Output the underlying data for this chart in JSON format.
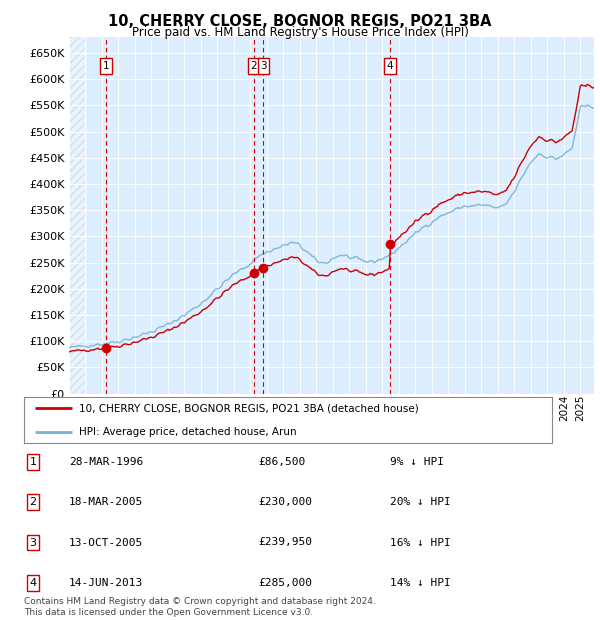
{
  "title": "10, CHERRY CLOSE, BOGNOR REGIS, PO21 3BA",
  "subtitle": "Price paid vs. HM Land Registry's House Price Index (HPI)",
  "ytick_values": [
    0,
    50000,
    100000,
    150000,
    200000,
    250000,
    300000,
    350000,
    400000,
    450000,
    500000,
    550000,
    600000,
    650000
  ],
  "ylim": [
    0,
    680000
  ],
  "xlim_start": 1994.0,
  "xlim_end": 2025.83,
  "plot_bg": "#ddeeff",
  "sale_dates": [
    1996.23,
    2005.21,
    2005.79,
    2013.45
  ],
  "sale_prices": [
    86500,
    230000,
    239950,
    285000
  ],
  "sale_labels": [
    "1",
    "2",
    "3",
    "4"
  ],
  "vline_color": "#cc0000",
  "dot_color": "#cc0000",
  "red_line_color": "#cc0000",
  "blue_line_color": "#7ab0d4",
  "legend_red_label": "10, CHERRY CLOSE, BOGNOR REGIS, PO21 3BA (detached house)",
  "legend_blue_label": "HPI: Average price, detached house, Arun",
  "table_rows": [
    {
      "label": "1",
      "date": "28-MAR-1996",
      "price": "£86,500",
      "pct": "9% ↓ HPI"
    },
    {
      "label": "2",
      "date": "18-MAR-2005",
      "price": "£230,000",
      "pct": "20% ↓ HPI"
    },
    {
      "label": "3",
      "date": "13-OCT-2005",
      "price": "£239,950",
      "pct": "16% ↓ HPI"
    },
    {
      "label": "4",
      "date": "14-JUN-2013",
      "price": "£285,000",
      "pct": "14% ↓ HPI"
    }
  ],
  "footnote": "Contains HM Land Registry data © Crown copyright and database right 2024.\nThis data is licensed under the Open Government Licence v3.0."
}
